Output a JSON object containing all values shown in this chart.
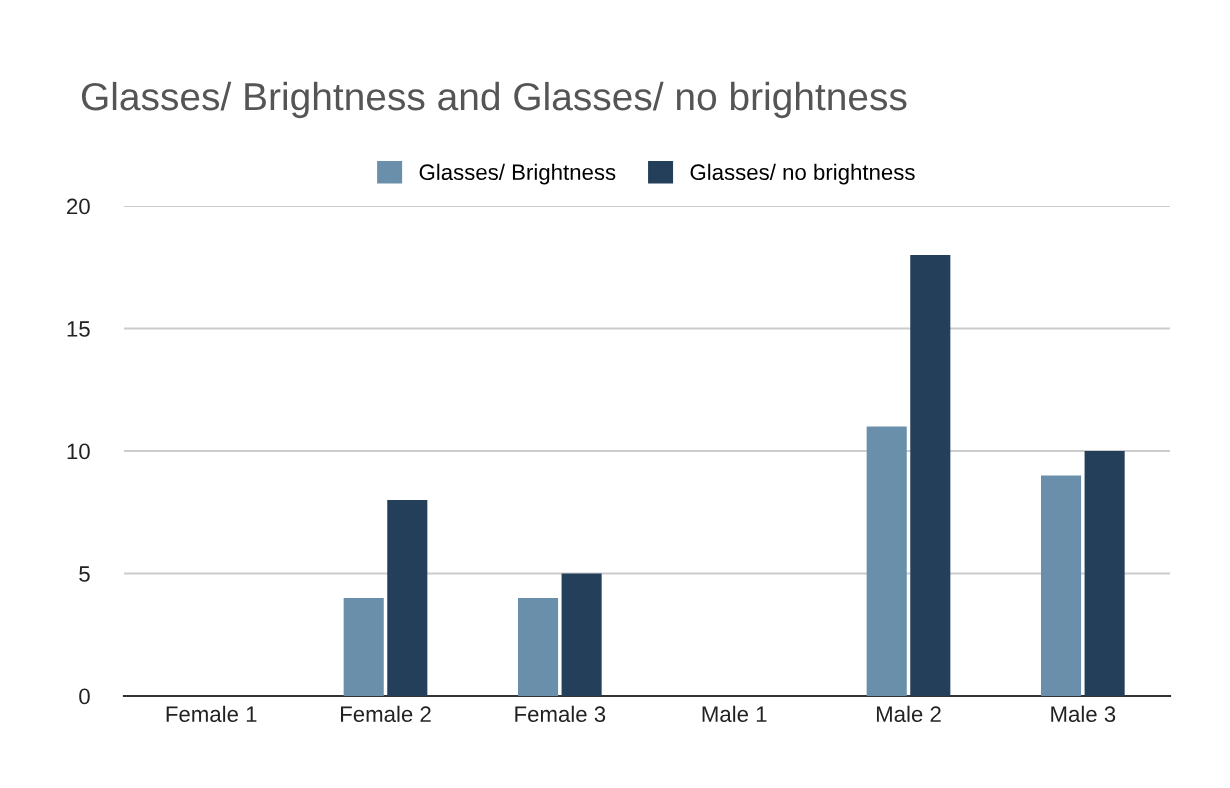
{
  "chart_data": {
    "type": "bar",
    "title": "Glasses/ Brightness and Glasses/ no brightness",
    "categories": [
      "Female 1",
      "Female 2",
      "Female 3",
      "Male 1",
      "Male 2",
      "Male 3"
    ],
    "series": [
      {
        "name": "Glasses/ Brightness",
        "color": "#6a8fab",
        "values": [
          0,
          4,
          4,
          0,
          11,
          9
        ]
      },
      {
        "name": "Glasses/ no brightness",
        "color": "#243f5a",
        "values": [
          0,
          8,
          5,
          0,
          18,
          10
        ]
      }
    ],
    "ylim": [
      0,
      20
    ],
    "yticks": [
      0,
      5,
      10,
      15,
      20
    ],
    "grid": "y",
    "legend": "top"
  }
}
